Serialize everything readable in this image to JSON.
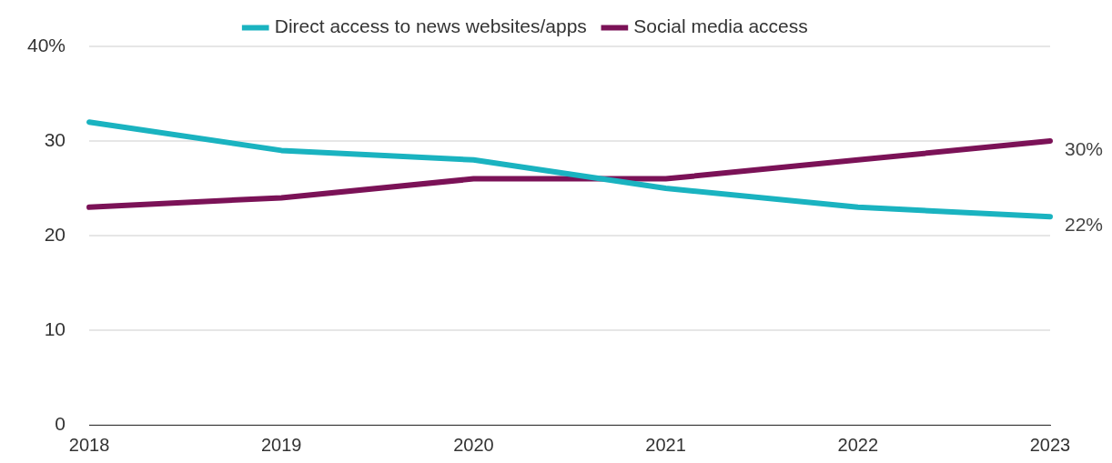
{
  "chart_data": {
    "type": "line",
    "categories": [
      "2018",
      "2019",
      "2020",
      "2021",
      "2022",
      "2023"
    ],
    "series": [
      {
        "name": "Direct access to news websites/apps",
        "color": "#1ab3c0",
        "values": [
          32,
          29,
          28,
          25,
          23,
          22
        ],
        "value_labels": [
          null,
          null,
          null,
          null,
          null,
          "22%"
        ]
      },
      {
        "name": "Social media access",
        "color": "#7b1257",
        "values": [
          23,
          24,
          26,
          26,
          28,
          30
        ],
        "value_labels": [
          null,
          null,
          null,
          null,
          null,
          "30%"
        ]
      }
    ],
    "ylim": [
      0,
      40
    ],
    "yticks": [
      0,
      10,
      20,
      30,
      {
        "value": 40,
        "label": "40%"
      }
    ],
    "grid": "y",
    "legend": "top",
    "marker": "none",
    "line_style": "solid"
  }
}
